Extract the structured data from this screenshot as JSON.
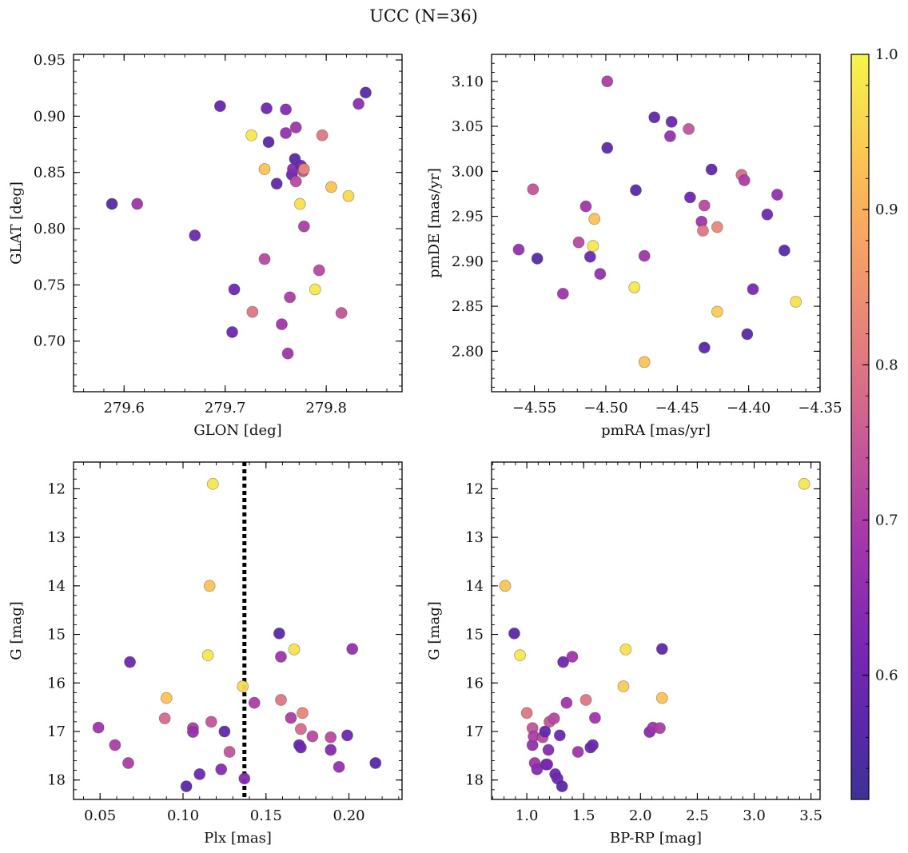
{
  "title": "UCC (N=36)",
  "colorbar": {
    "min": 0.52,
    "max": 1.0,
    "ticks": [
      0.6,
      0.7,
      0.8,
      0.9,
      1.0
    ],
    "tick_labels": [
      "0.6",
      "0.7",
      "0.8",
      "0.9",
      "1.0"
    ],
    "colormap": "plasma"
  },
  "chart_data": [
    {
      "type": "scatter",
      "xlabel": "GLON [deg]",
      "ylabel": "GLAT [deg]",
      "xlim": [
        279.55,
        279.875
      ],
      "ylim": [
        0.655,
        0.955
      ],
      "x_ticks": [
        279.6,
        279.7,
        279.8
      ],
      "x_tick_labels": [
        "279.6",
        "279.7",
        "279.8"
      ],
      "y_ticks": [
        0.7,
        0.75,
        0.8,
        0.85,
        0.9,
        0.95
      ],
      "y_tick_labels": [
        "0.70",
        "0.75",
        "0.80",
        "0.85",
        "0.90",
        "0.95"
      ],
      "x_minor_step": 0.02,
      "y_minor_step": 0.01,
      "points": [
        {
          "x": 279.588,
          "y": 0.822,
          "c": 0.56
        },
        {
          "x": 279.613,
          "y": 0.822,
          "c": 0.68
        },
        {
          "x": 279.67,
          "y": 0.794,
          "c": 0.6
        },
        {
          "x": 279.695,
          "y": 0.909,
          "c": 0.58
        },
        {
          "x": 279.709,
          "y": 0.746,
          "c": 0.6
        },
        {
          "x": 279.707,
          "y": 0.708,
          "c": 0.6
        },
        {
          "x": 279.727,
          "y": 0.726,
          "c": 0.8
        },
        {
          "x": 279.726,
          "y": 0.883,
          "c": 0.98
        },
        {
          "x": 279.739,
          "y": 0.853,
          "c": 0.93
        },
        {
          "x": 279.739,
          "y": 0.773,
          "c": 0.72
        },
        {
          "x": 279.741,
          "y": 0.907,
          "c": 0.6
        },
        {
          "x": 279.743,
          "y": 0.877,
          "c": 0.57
        },
        {
          "x": 279.751,
          "y": 0.84,
          "c": 0.58
        },
        {
          "x": 279.756,
          "y": 0.715,
          "c": 0.68
        },
        {
          "x": 279.76,
          "y": 0.906,
          "c": 0.64
        },
        {
          "x": 279.762,
          "y": 0.689,
          "c": 0.68
        },
        {
          "x": 279.764,
          "y": 0.739,
          "c": 0.7
        },
        {
          "x": 279.766,
          "y": 0.848,
          "c": 0.6
        },
        {
          "x": 279.767,
          "y": 0.853,
          "c": 0.64
        },
        {
          "x": 279.769,
          "y": 0.862,
          "c": 0.57
        },
        {
          "x": 279.77,
          "y": 0.89,
          "c": 0.68
        },
        {
          "x": 279.77,
          "y": 0.842,
          "c": 0.72
        },
        {
          "x": 279.774,
          "y": 0.822,
          "c": 0.97
        },
        {
          "x": 279.775,
          "y": 0.856,
          "c": 0.6
        },
        {
          "x": 279.777,
          "y": 0.851,
          "c": 0.74
        },
        {
          "x": 279.778,
          "y": 0.853,
          "c": 0.83
        },
        {
          "x": 279.778,
          "y": 0.802,
          "c": 0.7
        },
        {
          "x": 279.789,
          "y": 0.746,
          "c": 0.98
        },
        {
          "x": 279.793,
          "y": 0.763,
          "c": 0.72
        },
        {
          "x": 279.796,
          "y": 0.883,
          "c": 0.8
        },
        {
          "x": 279.805,
          "y": 0.837,
          "c": 0.93
        },
        {
          "x": 279.815,
          "y": 0.725,
          "c": 0.74
        },
        {
          "x": 279.822,
          "y": 0.829,
          "c": 0.96
        },
        {
          "x": 279.832,
          "y": 0.911,
          "c": 0.65
        },
        {
          "x": 279.839,
          "y": 0.921,
          "c": 0.56
        },
        {
          "x": 279.76,
          "y": 0.885,
          "c": 0.66
        }
      ]
    },
    {
      "type": "scatter",
      "xlabel": "pmRA [mas/yr]",
      "ylabel": "pmDE [mas/yr]",
      "xlim": [
        -4.58,
        -4.35
      ],
      "ylim": [
        2.755,
        3.13
      ],
      "x_ticks": [
        -4.55,
        -4.5,
        -4.45,
        -4.4,
        -4.35
      ],
      "x_tick_labels": [
        "−4.55",
        "−4.50",
        "−4.45",
        "−4.40",
        "−4.35"
      ],
      "y_ticks": [
        2.8,
        2.85,
        2.9,
        2.95,
        3.0,
        3.05,
        3.1
      ],
      "y_tick_labels": [
        "2.80",
        "2.85",
        "2.90",
        "2.95",
        "3.00",
        "3.05",
        "3.10"
      ],
      "x_minor_step": 0.01,
      "y_minor_step": 0.01,
      "points": [
        {
          "x": -4.561,
          "y": 2.913,
          "c": 0.66
        },
        {
          "x": -4.551,
          "y": 2.98,
          "c": 0.74
        },
        {
          "x": -4.548,
          "y": 2.903,
          "c": 0.56
        },
        {
          "x": -4.53,
          "y": 2.864,
          "c": 0.68
        },
        {
          "x": -4.519,
          "y": 2.921,
          "c": 0.72
        },
        {
          "x": -4.514,
          "y": 2.961,
          "c": 0.68
        },
        {
          "x": -4.511,
          "y": 2.905,
          "c": 0.6
        },
        {
          "x": -4.509,
          "y": 2.917,
          "c": 0.98
        },
        {
          "x": -4.508,
          "y": 2.947,
          "c": 0.93
        },
        {
          "x": -4.504,
          "y": 2.886,
          "c": 0.66
        },
        {
          "x": -4.499,
          "y": 3.1,
          "c": 0.7
        },
        {
          "x": -4.499,
          "y": 3.026,
          "c": 0.58
        },
        {
          "x": -4.479,
          "y": 2.979,
          "c": 0.57
        },
        {
          "x": -4.48,
          "y": 2.871,
          "c": 0.98
        },
        {
          "x": -4.473,
          "y": 2.906,
          "c": 0.68
        },
        {
          "x": -4.473,
          "y": 2.788,
          "c": 0.93
        },
        {
          "x": -4.466,
          "y": 3.06,
          "c": 0.58
        },
        {
          "x": -4.454,
          "y": 3.055,
          "c": 0.6
        },
        {
          "x": -4.455,
          "y": 3.039,
          "c": 0.66
        },
        {
          "x": -4.442,
          "y": 3.047,
          "c": 0.74
        },
        {
          "x": -4.441,
          "y": 2.971,
          "c": 0.6
        },
        {
          "x": -4.433,
          "y": 2.944,
          "c": 0.68
        },
        {
          "x": -4.432,
          "y": 2.934,
          "c": 0.8
        },
        {
          "x": -4.431,
          "y": 2.962,
          "c": 0.72
        },
        {
          "x": -4.431,
          "y": 2.804,
          "c": 0.57
        },
        {
          "x": -4.426,
          "y": 3.002,
          "c": 0.58
        },
        {
          "x": -4.422,
          "y": 2.844,
          "c": 0.94
        },
        {
          "x": -4.422,
          "y": 2.938,
          "c": 0.83
        },
        {
          "x": -4.405,
          "y": 2.996,
          "c": 0.78
        },
        {
          "x": -4.403,
          "y": 2.99,
          "c": 0.7
        },
        {
          "x": -4.401,
          "y": 2.819,
          "c": 0.56
        },
        {
          "x": -4.397,
          "y": 2.869,
          "c": 0.62
        },
        {
          "x": -4.387,
          "y": 2.952,
          "c": 0.6
        },
        {
          "x": -4.38,
          "y": 2.974,
          "c": 0.66
        },
        {
          "x": -4.375,
          "y": 2.912,
          "c": 0.56
        },
        {
          "x": -4.367,
          "y": 2.855,
          "c": 0.97
        }
      ]
    },
    {
      "type": "scatter",
      "xlabel": "Plx [mas]",
      "ylabel": "G [mag]",
      "xlim": [
        0.034,
        0.232
      ],
      "ylim": [
        18.4,
        11.45
      ],
      "y_inverted": true,
      "vline": 0.137,
      "x_ticks": [
        0.05,
        0.1,
        0.15,
        0.2
      ],
      "x_tick_labels": [
        "0.05",
        "0.10",
        "0.15",
        "0.20"
      ],
      "y_ticks": [
        12,
        13,
        14,
        15,
        16,
        17,
        18
      ],
      "y_tick_labels": [
        "12",
        "13",
        "14",
        "15",
        "16",
        "17",
        "18"
      ],
      "x_minor_step": 0.01,
      "y_minor_step": 0.2,
      "points": [
        {
          "x": 0.049,
          "y": 16.92,
          "c": 0.68
        },
        {
          "x": 0.059,
          "y": 17.28,
          "c": 0.7
        },
        {
          "x": 0.067,
          "y": 17.65,
          "c": 0.7
        },
        {
          "x": 0.068,
          "y": 15.57,
          "c": 0.6
        },
        {
          "x": 0.089,
          "y": 16.73,
          "c": 0.78
        },
        {
          "x": 0.09,
          "y": 16.31,
          "c": 0.93
        },
        {
          "x": 0.102,
          "y": 18.13,
          "c": 0.57
        },
        {
          "x": 0.106,
          "y": 16.93,
          "c": 0.7
        },
        {
          "x": 0.106,
          "y": 17.01,
          "c": 0.66
        },
        {
          "x": 0.11,
          "y": 17.88,
          "c": 0.6
        },
        {
          "x": 0.115,
          "y": 15.43,
          "c": 0.98
        },
        {
          "x": 0.116,
          "y": 14.0,
          "c": 0.93
        },
        {
          "x": 0.117,
          "y": 16.8,
          "c": 0.74
        },
        {
          "x": 0.118,
          "y": 11.9,
          "c": 0.98
        },
        {
          "x": 0.123,
          "y": 17.78,
          "c": 0.64
        },
        {
          "x": 0.125,
          "y": 17.0,
          "c": 0.58
        },
        {
          "x": 0.128,
          "y": 17.42,
          "c": 0.74
        },
        {
          "x": 0.136,
          "y": 16.07,
          "c": 0.96
        },
        {
          "x": 0.137,
          "y": 17.97,
          "c": 0.64
        },
        {
          "x": 0.143,
          "y": 16.41,
          "c": 0.7
        },
        {
          "x": 0.158,
          "y": 14.98,
          "c": 0.57
        },
        {
          "x": 0.159,
          "y": 15.46,
          "c": 0.68
        },
        {
          "x": 0.159,
          "y": 16.35,
          "c": 0.8
        },
        {
          "x": 0.165,
          "y": 16.72,
          "c": 0.7
        },
        {
          "x": 0.167,
          "y": 15.31,
          "c": 0.97
        },
        {
          "x": 0.17,
          "y": 17.28,
          "c": 0.6
        },
        {
          "x": 0.171,
          "y": 17.33,
          "c": 0.6
        },
        {
          "x": 0.171,
          "y": 16.95,
          "c": 0.78
        },
        {
          "x": 0.172,
          "y": 16.62,
          "c": 0.83
        },
        {
          "x": 0.178,
          "y": 17.1,
          "c": 0.72
        },
        {
          "x": 0.189,
          "y": 17.12,
          "c": 0.72
        },
        {
          "x": 0.189,
          "y": 17.38,
          "c": 0.64
        },
        {
          "x": 0.194,
          "y": 17.73,
          "c": 0.66
        },
        {
          "x": 0.199,
          "y": 17.08,
          "c": 0.6
        },
        {
          "x": 0.202,
          "y": 15.3,
          "c": 0.66
        },
        {
          "x": 0.216,
          "y": 17.65,
          "c": 0.57
        }
      ]
    },
    {
      "type": "scatter",
      "xlabel": "BP-RP [mag]",
      "ylabel": "G [mag]",
      "xlim": [
        0.69,
        3.58
      ],
      "ylim": [
        18.4,
        11.45
      ],
      "y_inverted": true,
      "x_ticks": [
        1.0,
        1.5,
        2.0,
        2.5,
        3.0,
        3.5
      ],
      "x_tick_labels": [
        "1.0",
        "1.5",
        "2.0",
        "2.5",
        "3.0",
        "3.5"
      ],
      "y_ticks": [
        12,
        13,
        14,
        15,
        16,
        17,
        18
      ],
      "y_tick_labels": [
        "12",
        "13",
        "14",
        "15",
        "16",
        "17",
        "18"
      ],
      "x_minor_step": 0.1,
      "y_minor_step": 0.2,
      "points": [
        {
          "x": 3.44,
          "y": 11.9,
          "c": 0.98
        },
        {
          "x": 0.81,
          "y": 14.0,
          "c": 0.93
        },
        {
          "x": 0.89,
          "y": 14.98,
          "c": 0.57
        },
        {
          "x": 0.94,
          "y": 15.43,
          "c": 0.98
        },
        {
          "x": 1.0,
          "y": 16.62,
          "c": 0.8
        },
        {
          "x": 1.05,
          "y": 16.93,
          "c": 0.74
        },
        {
          "x": 1.05,
          "y": 17.28,
          "c": 0.66
        },
        {
          "x": 1.06,
          "y": 17.1,
          "c": 0.7
        },
        {
          "x": 1.07,
          "y": 17.65,
          "c": 0.68
        },
        {
          "x": 1.09,
          "y": 17.78,
          "c": 0.64
        },
        {
          "x": 1.14,
          "y": 17.12,
          "c": 0.72
        },
        {
          "x": 1.16,
          "y": 17.0,
          "c": 0.58
        },
        {
          "x": 1.17,
          "y": 17.68,
          "c": 0.6
        },
        {
          "x": 1.19,
          "y": 17.38,
          "c": 0.64
        },
        {
          "x": 1.2,
          "y": 16.8,
          "c": 0.74
        },
        {
          "x": 1.24,
          "y": 16.73,
          "c": 0.72
        },
        {
          "x": 1.25,
          "y": 17.88,
          "c": 0.6
        },
        {
          "x": 1.27,
          "y": 17.97,
          "c": 0.6
        },
        {
          "x": 1.29,
          "y": 17.08,
          "c": 0.6
        },
        {
          "x": 1.31,
          "y": 18.13,
          "c": 0.57
        },
        {
          "x": 1.32,
          "y": 15.57,
          "c": 0.6
        },
        {
          "x": 1.35,
          "y": 16.41,
          "c": 0.68
        },
        {
          "x": 1.4,
          "y": 15.46,
          "c": 0.68
        },
        {
          "x": 1.45,
          "y": 17.42,
          "c": 0.68
        },
        {
          "x": 1.52,
          "y": 16.35,
          "c": 0.8
        },
        {
          "x": 1.56,
          "y": 17.33,
          "c": 0.6
        },
        {
          "x": 1.58,
          "y": 17.28,
          "c": 0.6
        },
        {
          "x": 1.6,
          "y": 16.72,
          "c": 0.68
        },
        {
          "x": 1.85,
          "y": 16.07,
          "c": 0.94
        },
        {
          "x": 1.87,
          "y": 15.31,
          "c": 0.97
        },
        {
          "x": 2.08,
          "y": 17.01,
          "c": 0.64
        },
        {
          "x": 2.11,
          "y": 16.92,
          "c": 0.68
        },
        {
          "x": 2.17,
          "y": 16.93,
          "c": 0.7
        },
        {
          "x": 2.19,
          "y": 15.3,
          "c": 0.58
        },
        {
          "x": 2.19,
          "y": 16.31,
          "c": 0.93
        },
        {
          "x": 1.18,
          "y": 17.68,
          "c": 0.62
        }
      ]
    }
  ]
}
